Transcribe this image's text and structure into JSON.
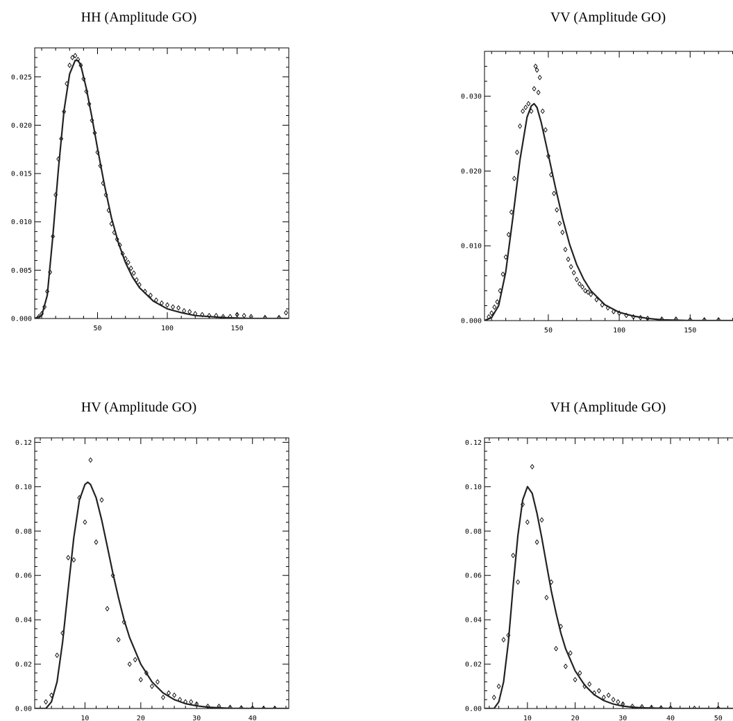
{
  "chart_data": [
    {
      "type": "scatter",
      "title": "HH (Amplitude GO)",
      "xlim": [
        5,
        187
      ],
      "ylim": [
        0,
        0.028
      ],
      "xticks": [
        50,
        100,
        150
      ],
      "xtick_labels": [
        "50",
        "100",
        "150"
      ],
      "yticks": [
        0,
        0.005,
        0.01,
        0.015,
        0.02,
        0.025
      ],
      "ytick_labels": [
        "0.000",
        "0.005",
        "0.010",
        "0.015",
        "0.020",
        "0.025"
      ],
      "grid": false,
      "legend": "none",
      "series": [
        {
          "kind": "points",
          "marker": "diamond",
          "x": [
            8,
            10,
            12,
            14,
            16,
            18,
            20,
            22,
            24,
            26,
            28,
            30,
            32,
            34,
            36,
            38,
            40,
            42,
            44,
            46,
            48,
            50,
            52,
            54,
            56,
            58,
            60,
            62,
            64,
            66,
            68,
            70,
            72,
            74,
            76,
            78,
            80,
            84,
            88,
            92,
            96,
            100,
            104,
            108,
            112,
            116,
            120,
            125,
            130,
            135,
            140,
            145,
            150,
            155,
            160,
            170,
            180,
            185
          ],
          "y": [
            0.0002,
            0.0005,
            0.0012,
            0.0028,
            0.0048,
            0.0085,
            0.0128,
            0.0165,
            0.0186,
            0.0214,
            0.0243,
            0.0262,
            0.027,
            0.0272,
            0.0268,
            0.0262,
            0.0248,
            0.0235,
            0.0222,
            0.0205,
            0.0192,
            0.0172,
            0.0158,
            0.014,
            0.0128,
            0.0112,
            0.0098,
            0.0089,
            0.0082,
            0.0076,
            0.0067,
            0.0062,
            0.0058,
            0.0052,
            0.0047,
            0.004,
            0.0035,
            0.0028,
            0.0024,
            0.0019,
            0.0016,
            0.0014,
            0.0012,
            0.0011,
            0.0008,
            0.0007,
            0.0005,
            0.0004,
            0.0003,
            0.0003,
            0.0002,
            0.0002,
            0.0004,
            0.0003,
            0.0002,
            0.0001,
            0.0001,
            0.0006
          ]
        },
        {
          "kind": "line",
          "x": [
            5,
            10,
            14,
            18,
            22,
            26,
            30,
            34,
            36,
            38,
            42,
            46,
            50,
            55,
            60,
            65,
            70,
            75,
            80,
            90,
            100,
            110,
            120,
            130,
            140,
            150,
            160,
            170,
            187
          ],
          "y": [
            0,
            0.0003,
            0.0024,
            0.0085,
            0.0155,
            0.0215,
            0.0253,
            0.0267,
            0.0267,
            0.0262,
            0.0238,
            0.0208,
            0.0176,
            0.0138,
            0.0104,
            0.0078,
            0.0058,
            0.0043,
            0.0032,
            0.0018,
            0.001,
            0.0006,
            0.0003,
            0.0002,
            0.0001,
            5e-05,
            0,
            0,
            0
          ]
        }
      ]
    },
    {
      "type": "scatter",
      "title": "VV (Amplitude GO)",
      "xlim": [
        5,
        190
      ],
      "ylim": [
        0,
        0.036
      ],
      "xticks": [
        50,
        100,
        150
      ],
      "xtick_labels": [
        "50",
        "100",
        "150"
      ],
      "yticks": [
        0,
        0.01,
        0.02,
        0.03
      ],
      "ytick_labels": [
        "0.000",
        "0.010",
        "0.020",
        "0.030"
      ],
      "grid": false,
      "legend": "none",
      "series": [
        {
          "kind": "points",
          "marker": "diamond",
          "x": [
            8,
            10,
            12,
            14,
            16,
            18,
            20,
            22,
            24,
            26,
            28,
            30,
            32,
            34,
            36,
            38,
            40,
            41,
            42,
            43,
            44,
            46,
            48,
            50,
            52,
            54,
            56,
            58,
            60,
            62,
            64,
            66,
            68,
            70,
            72,
            74,
            76,
            78,
            80,
            84,
            88,
            92,
            96,
            100,
            105,
            110,
            115,
            120,
            130,
            140,
            150,
            160,
            170
          ],
          "y": [
            0.0005,
            0.001,
            0.0018,
            0.0025,
            0.004,
            0.0062,
            0.0085,
            0.0115,
            0.0145,
            0.019,
            0.0225,
            0.026,
            0.028,
            0.0285,
            0.029,
            0.028,
            0.031,
            0.034,
            0.0335,
            0.0305,
            0.0325,
            0.028,
            0.0255,
            0.022,
            0.0195,
            0.017,
            0.0148,
            0.013,
            0.0118,
            0.0095,
            0.0082,
            0.0072,
            0.0064,
            0.0055,
            0.0049,
            0.0045,
            0.004,
            0.0038,
            0.0035,
            0.0028,
            0.0021,
            0.0017,
            0.0012,
            0.001,
            0.0007,
            0.0005,
            0.0004,
            0.0003,
            0.0002,
            0.0002,
            0.0001,
            0.0001,
            0.0001
          ]
        },
        {
          "kind": "line",
          "x": [
            5,
            10,
            15,
            20,
            25,
            30,
            35,
            38,
            40,
            42,
            45,
            50,
            55,
            60,
            65,
            70,
            75,
            80,
            90,
            100,
            110,
            120,
            130,
            150,
            170,
            190
          ],
          "y": [
            0,
            0.0004,
            0.002,
            0.0065,
            0.0138,
            0.0215,
            0.0272,
            0.0287,
            0.029,
            0.0285,
            0.0265,
            0.0222,
            0.0178,
            0.0137,
            0.0102,
            0.0075,
            0.0055,
            0.004,
            0.0021,
            0.0011,
            0.0006,
            0.0003,
            0.0001,
            0,
            0,
            0
          ]
        }
      ]
    },
    {
      "type": "scatter",
      "title": "HV (Amplitude GO)",
      "xlim": [
        1,
        46.5
      ],
      "ylim": [
        0,
        0.122
      ],
      "xticks": [
        10,
        20,
        30,
        40
      ],
      "xtick_labels": [
        "10",
        "20",
        "30",
        "40"
      ],
      "yticks": [
        0,
        0.02,
        0.04,
        0.06,
        0.08,
        0.1,
        0.12
      ],
      "ytick_labels": [
        "0.00",
        "0.02",
        "0.04",
        "0.06",
        "0.08",
        "0.10",
        "0.12"
      ],
      "grid": false,
      "legend": "none",
      "series": [
        {
          "kind": "points",
          "marker": "diamond",
          "x": [
            3,
            4,
            5,
            6,
            7,
            8,
            9,
            10,
            11,
            12,
            13,
            14,
            15,
            16,
            17,
            18,
            19,
            20,
            21,
            22,
            23,
            24,
            25,
            26,
            27,
            28,
            29,
            30,
            32,
            34,
            36,
            38,
            40,
            42,
            44
          ],
          "y": [
            0.003,
            0.006,
            0.024,
            0.034,
            0.068,
            0.067,
            0.095,
            0.084,
            0.112,
            0.075,
            0.094,
            0.045,
            0.06,
            0.031,
            0.039,
            0.02,
            0.022,
            0.013,
            0.016,
            0.01,
            0.012,
            0.005,
            0.007,
            0.006,
            0.004,
            0.003,
            0.003,
            0.002,
            0.001,
            0.001,
            0.0005,
            0.0003,
            0.0002,
            0.0001,
            0.0001
          ]
        },
        {
          "kind": "line",
          "x": [
            1,
            3,
            4,
            5,
            6,
            7,
            8,
            9,
            10,
            10.5,
            11,
            12,
            13,
            14,
            15,
            16,
            17,
            18,
            20,
            22,
            24,
            26,
            28,
            30,
            32,
            34,
            36,
            40,
            46.5
          ],
          "y": [
            0,
            0,
            0.003,
            0.012,
            0.03,
            0.054,
            0.077,
            0.094,
            0.101,
            0.102,
            0.101,
            0.095,
            0.085,
            0.073,
            0.061,
            0.05,
            0.04,
            0.032,
            0.02,
            0.012,
            0.007,
            0.004,
            0.0022,
            0.0012,
            0.0006,
            0.0003,
            0.0001,
            0,
            0
          ]
        }
      ]
    },
    {
      "type": "scatter",
      "title": "VH (Amplitude GO)",
      "xlim": [
        1,
        56
      ],
      "ylim": [
        0,
        0.122
      ],
      "xticks": [
        10,
        20,
        30,
        40,
        50
      ],
      "xtick_labels": [
        "10",
        "20",
        "30",
        "40",
        "50"
      ],
      "yticks": [
        0,
        0.02,
        0.04,
        0.06,
        0.08,
        0.1,
        0.12
      ],
      "ytick_labels": [
        "0.00",
        "0.02",
        "0.04",
        "0.06",
        "0.08",
        "0.10",
        "0.12"
      ],
      "grid": false,
      "legend": "none",
      "series": [
        {
          "kind": "points",
          "marker": "diamond",
          "x": [
            3,
            4,
            5,
            6,
            7,
            8,
            9,
            10,
            11,
            12,
            13,
            14,
            15,
            16,
            17,
            18,
            19,
            20,
            21,
            22,
            23,
            24,
            25,
            26,
            27,
            28,
            29,
            30,
            32,
            34,
            36,
            38,
            40,
            45,
            50
          ],
          "y": [
            0.005,
            0.01,
            0.031,
            0.033,
            0.069,
            0.057,
            0.092,
            0.084,
            0.109,
            0.075,
            0.085,
            0.05,
            0.057,
            0.027,
            0.037,
            0.019,
            0.025,
            0.013,
            0.016,
            0.01,
            0.011,
            0.007,
            0.008,
            0.005,
            0.006,
            0.004,
            0.003,
            0.002,
            0.001,
            0.0008,
            0.0005,
            0.0003,
            0.0002,
            0.0001,
            0.0001
          ]
        },
        {
          "kind": "line",
          "x": [
            1,
            3,
            4,
            5,
            6,
            7,
            8,
            9,
            10,
            11,
            12,
            13,
            14,
            15,
            16,
            17,
            18,
            20,
            22,
            24,
            26,
            28,
            30,
            32,
            34,
            36,
            40,
            50,
            56
          ],
          "y": [
            0,
            0,
            0.003,
            0.012,
            0.03,
            0.055,
            0.078,
            0.094,
            0.1,
            0.097,
            0.088,
            0.077,
            0.065,
            0.053,
            0.043,
            0.034,
            0.027,
            0.017,
            0.0105,
            0.0062,
            0.0036,
            0.002,
            0.0011,
            0.0006,
            0.0003,
            0.0002,
            0,
            0,
            0
          ]
        }
      ]
    }
  ]
}
